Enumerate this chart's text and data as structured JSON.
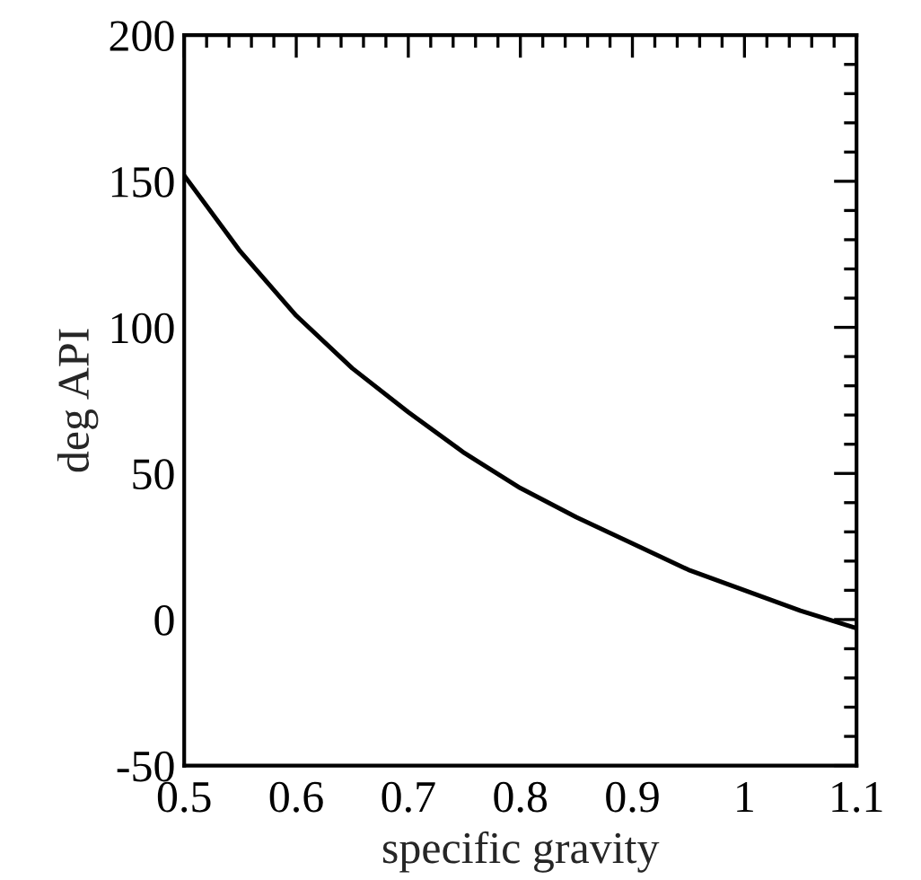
{
  "chart_data": {
    "type": "line",
    "xlabel": "specific gravity",
    "ylabel": "deg API",
    "x": [
      0.5,
      0.55,
      0.6,
      0.65,
      0.7,
      0.75,
      0.8,
      0.85,
      0.9,
      0.95,
      1.0,
      1.05,
      1.1
    ],
    "series": [
      {
        "color": "#000000",
        "values": [
          152,
          126,
          104,
          86,
          71,
          57,
          45,
          35,
          26,
          17,
          10,
          3,
          -3
        ]
      }
    ],
    "xlim": [
      0.5,
      1.1
    ],
    "xticks": [
      0.5,
      0.6,
      0.7,
      0.8,
      0.9,
      1,
      1.1
    ],
    "ylim": [
      -50,
      200
    ],
    "yticks": [
      -50,
      0,
      50,
      100,
      150,
      200
    ],
    "grid": false,
    "marker": "none",
    "line_style": "solid"
  }
}
